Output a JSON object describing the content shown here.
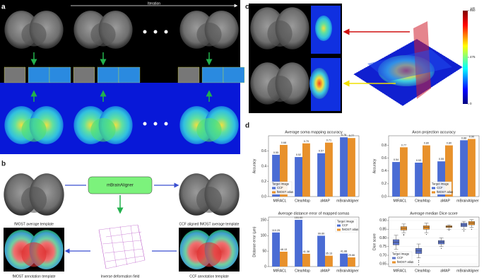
{
  "figure": {
    "panel_labels": [
      "a",
      "b",
      "c",
      "d"
    ],
    "iteration_label": "Iteration",
    "aligner": "mBrainAligner",
    "captions": [
      "fMOST average template",
      "CCF aligned fMOST average template",
      "fMOST annotation template",
      "Inverse deformation field",
      "CCF annotation template"
    ],
    "colorbar": {
      "label": "µm",
      "lim": [
        0,
        950
      ],
      "ticks": [
        950,
        475,
        0
      ]
    }
  },
  "chart_data": [
    {
      "type": "bar",
      "title": "Average soma mapping accuracy",
      "ylabel": "Accuracy",
      "categories": [
        "MIRACL",
        "ClearMap",
        "aMAP",
        "mBrainAligner"
      ],
      "legend_title": "Target image",
      "legend": "lower left",
      "series": [
        {
          "name": "CCF",
          "color": "#4a6cd4",
          "values": [
            0.55,
            0.52,
            0.57,
            0.78
          ],
          "value_labels": [
            "0.55",
            "0.52",
            "0.57",
            "0.78"
          ]
        },
        {
          "name": "fMOST atlas",
          "color": "#e8912b",
          "values": [
            0.68,
            0.7,
            0.71,
            0.77
          ],
          "value_labels": [
            "0.68",
            "0.70",
            "0.71",
            "0.77"
          ]
        }
      ],
      "ylim": [
        0,
        0.8
      ],
      "yticks": [
        {
          "value": 0,
          "label": "0.0"
        },
        0.2,
        0.4,
        0.6
      ]
    },
    {
      "type": "bar",
      "title": "Axon projection accuracy",
      "ylabel": "Accuracy",
      "categories": [
        "MIRACL",
        "ClearMap",
        "aMAP",
        "mBrainAligner"
      ],
      "legend_title": "Target image",
      "legend": "lower center",
      "series": [
        {
          "name": "CCF",
          "color": "#4a6cd4",
          "values": [
            0.54,
            0.53,
            0.55,
            0.88
          ],
          "value_labels": [
            "0.54",
            "0.53",
            "0.55",
            "0.88"
          ]
        },
        {
          "name": "fMOST atlas",
          "color": "#e8912b",
          "values": [
            0.77,
            0.8,
            0.8,
            0.9
          ],
          "value_labels": [
            "0.77",
            "0.80",
            "0.80",
            "0.90"
          ]
        }
      ],
      "ylim": [
        0,
        0.95
      ],
      "yticks": [
        {
          "value": 0,
          "label": "0.0"
        },
        0.2,
        0.4,
        0.6,
        0.8
      ]
    },
    {
      "type": "bar",
      "title": "Average distance error of mapped somas",
      "ylabel": "Distance error (µm)",
      "categories": [
        "MIRACL",
        "ClearMap",
        "aMAP",
        "mBrainAligner"
      ],
      "legend_title": "Target image",
      "legend": "upper right",
      "series": [
        {
          "name": "CCF",
          "color": "#4a6cd4",
          "values": [
            110.25,
            151,
            99.6,
            41.88
          ],
          "value_labels": [
            "110.25",
            "151.00",
            "99.60",
            "41.88"
          ]
        },
        {
          "name": "fMOST atlas",
          "color": "#e8912b",
          "values": [
            48.13,
            41.38,
            35.13,
            29.66
          ],
          "value_labels": [
            "48.13",
            "41.38",
            "35.13",
            "29.66"
          ]
        }
      ],
      "ylim": [
        0,
        160
      ],
      "yticks": [
        0,
        50,
        100,
        150
      ]
    },
    {
      "type": "box",
      "title": "Average median Dice score",
      "ylabel": "Dice score",
      "categories": [
        "MIRACL",
        "ClearMap",
        "aMAP",
        "mBrainAligner"
      ],
      "legend_title": "Target image",
      "legend": "lower left",
      "series": [
        {
          "name": "CCF",
          "color": "#5b73c9",
          "values": [
            {
              "min": 0.735,
              "q1": 0.76,
              "median": 0.775,
              "q3": 0.79,
              "max": 0.815,
              "outliers": [
                0.72,
                0.715
              ]
            },
            {
              "min": 0.685,
              "q1": 0.71,
              "median": 0.725,
              "q3": 0.74,
              "max": 0.765,
              "outliers": [
                0.67,
                0.66,
                0.645
              ]
            },
            {
              "min": 0.75,
              "q1": 0.765,
              "median": 0.775,
              "q3": 0.785,
              "max": 0.8,
              "outliers": [
                0.74
              ]
            },
            {
              "min": 0.85,
              "q1": 0.865,
              "median": 0.875,
              "q3": 0.885,
              "max": 0.895,
              "outliers": [
                0.84
              ]
            }
          ]
        },
        {
          "name": "fMOST atlas",
          "color": "#e8912b",
          "values": [
            {
              "min": 0.83,
              "q1": 0.845,
              "median": 0.855,
              "q3": 0.865,
              "max": 0.88,
              "outliers": [
                0.82,
                0.815
              ]
            },
            {
              "min": 0.83,
              "q1": 0.85,
              "median": 0.86,
              "q3": 0.87,
              "max": 0.885,
              "outliers": [
                0.82
              ]
            },
            {
              "min": 0.85,
              "q1": 0.86,
              "median": 0.865,
              "q3": 0.87,
              "max": 0.875,
              "outliers": [
                0.845
              ]
            },
            {
              "min": 0.86,
              "q1": 0.875,
              "median": 0.885,
              "q3": 0.895,
              "max": 0.905,
              "outliers": [
                0.85
              ]
            }
          ]
        }
      ],
      "ylim": [
        0.635,
        0.92
      ],
      "yticks": [
        0.65,
        {
          "value": 0.7,
          "label": "0.70"
        },
        0.75,
        {
          "value": 0.8,
          "label": "0.80"
        },
        0.85,
        {
          "value": 0.9,
          "label": "0.90"
        }
      ]
    }
  ]
}
